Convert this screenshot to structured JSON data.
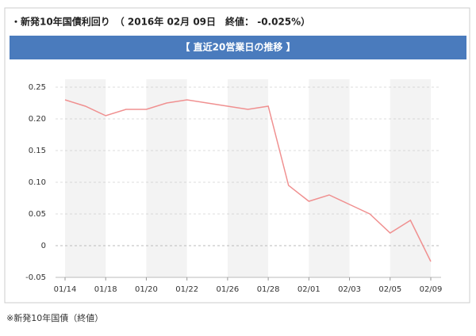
{
  "header": {
    "title": "・新発10年国債利回り　（ 2016年 02月 09日　終値： -0.025%）"
  },
  "banner": "【 直近20営業日の推移 】",
  "chart_data": {
    "type": "line",
    "categories": [
      "01/14",
      null,
      "01/18",
      null,
      "01/20",
      null,
      "01/22",
      null,
      "01/26",
      null,
      "01/28",
      null,
      "02/01",
      null,
      "02/03",
      null,
      "02/05",
      null,
      "02/09"
    ],
    "values": [
      0.23,
      0.22,
      0.205,
      0.215,
      0.215,
      0.225,
      0.23,
      0.225,
      0.22,
      0.215,
      0.22,
      0.095,
      0.07,
      0.08,
      0.065,
      0.05,
      0.02,
      0.04,
      -0.025
    ],
    "color": "#f09090",
    "ylim": [
      -0.05,
      0.25
    ],
    "yticks": [
      -0.05,
      {
        "value": 0,
        "label": "0"
      },
      0.05,
      {
        "value": 0.1,
        "label": "0.10"
      },
      0.15,
      {
        "value": 0.2,
        "label": "0.20"
      },
      0.25
    ],
    "grid": true
  },
  "footnote": "※新発10年国債（終値）"
}
